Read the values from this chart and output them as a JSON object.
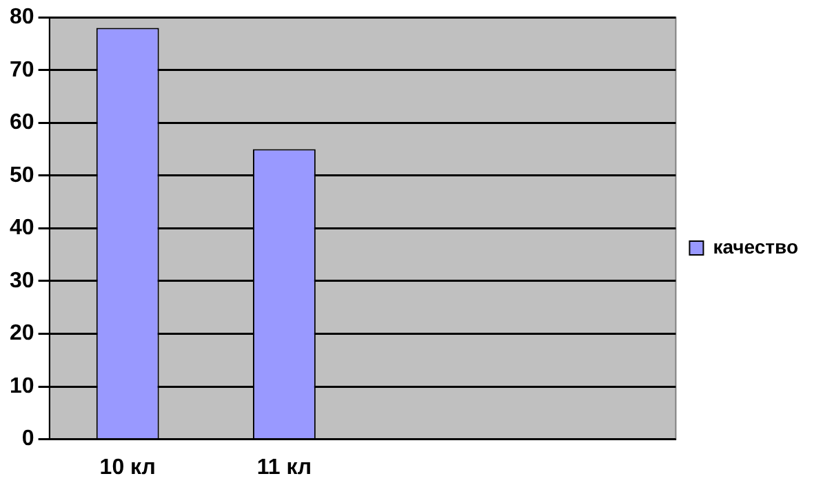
{
  "chart_data": {
    "type": "bar",
    "categories": [
      "10 кл",
      "11 кл",
      null,
      null
    ],
    "series": [
      {
        "name": "качество",
        "color": "#9999ff",
        "values": [
          78,
          55,
          null,
          null
        ]
      }
    ],
    "ylim": [
      0,
      80
    ],
    "yticks": [
      0,
      10,
      20,
      30,
      40,
      50,
      60,
      70,
      80
    ],
    "grid": "y",
    "legend": "right"
  }
}
